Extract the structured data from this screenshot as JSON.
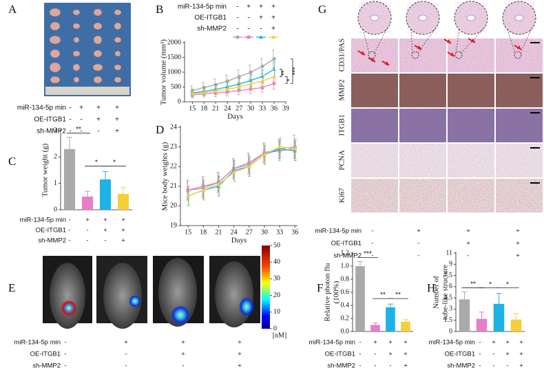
{
  "panels": [
    "A",
    "B",
    "C",
    "D",
    "E",
    "F",
    "G",
    "H"
  ],
  "conditions": {
    "rows": [
      {
        "label": "miR-134-5p min",
        "signs": [
          "-",
          "+",
          "+",
          "+"
        ]
      },
      {
        "label": "OE-ITGB1",
        "signs": [
          "-",
          "-",
          "+",
          "+"
        ]
      },
      {
        "label": "sh-MMP2",
        "signs": [
          "-",
          "-",
          "-",
          "+"
        ]
      }
    ]
  },
  "ihc": {
    "rows": [
      "CD31/PAS",
      "MMP2",
      "ITGB1",
      "PCNA",
      "Ki67"
    ]
  },
  "chart_data": [
    {
      "type": "line",
      "ylabel": "Tumor volume (mm³)",
      "xlabel": "Days",
      "x": [
        15,
        18,
        21,
        24,
        27,
        30,
        33,
        36
      ],
      "xlim": [
        13,
        39
      ],
      "xticks": [
        15,
        18,
        21,
        24,
        27,
        30,
        33,
        36,
        39
      ],
      "ylim": [
        0,
        2000
      ],
      "yticks": [
        0,
        500,
        1000,
        1500,
        2000
      ],
      "series": [
        {
          "color": "#a9a9a9",
          "marker": "circle",
          "values": [
            380,
            480,
            580,
            700,
            850,
            1000,
            1200,
            1450
          ],
          "errors": [
            150,
            170,
            190,
            200,
            220,
            240,
            260,
            300
          ]
        },
        {
          "color": "#e67fc8",
          "marker": "square",
          "values": [
            230,
            270,
            300,
            330,
            380,
            430,
            480,
            620
          ],
          "errors": [
            100,
            110,
            120,
            130,
            140,
            150,
            160,
            200
          ]
        },
        {
          "color": "#1fb2e6",
          "marker": "triangle",
          "values": [
            300,
            350,
            420,
            500,
            600,
            720,
            860,
            1100
          ],
          "errors": [
            120,
            130,
            150,
            160,
            180,
            200,
            220,
            250
          ]
        },
        {
          "color": "#f5cf3a",
          "marker": "triangle",
          "values": [
            270,
            310,
            360,
            420,
            500,
            600,
            700,
            850
          ],
          "errors": [
            110,
            120,
            130,
            140,
            160,
            180,
            200,
            230
          ]
        }
      ],
      "annotations": [
        "**",
        "*",
        "***"
      ]
    },
    {
      "type": "bar",
      "ylabel": "Tumor  weight (g)",
      "values": [
        2.3,
        0.5,
        1.15,
        0.6
      ],
      "errors": [
        0.45,
        0.2,
        0.3,
        0.25
      ],
      "colors": [
        "#a9a9a9",
        "#e67fc8",
        "#1fb2e6",
        "#f5cf3a"
      ],
      "ylim": [
        0,
        3
      ],
      "yticks": [
        0,
        1,
        2,
        3
      ],
      "annotations": [
        "**",
        "*",
        "*"
      ]
    },
    {
      "type": "line",
      "ylabel": "Mice body weights (g)",
      "xlabel": "Days",
      "x": [
        15,
        18,
        21,
        24,
        27,
        30,
        33,
        36
      ],
      "xlim": [
        13.5,
        36.5
      ],
      "xticks": [
        15,
        18,
        21,
        24,
        27,
        30,
        33,
        36
      ],
      "ylim": [
        19,
        24
      ],
      "yticks": [
        19,
        20,
        21,
        22,
        23,
        24
      ],
      "series": [
        {
          "color": "#a9a9a9",
          "marker": "circle",
          "values": [
            20.8,
            20.9,
            21.2,
            21.9,
            22.2,
            22.7,
            22.9,
            23.0
          ],
          "errors": [
            0.5,
            0.5,
            0.5,
            0.5,
            0.5,
            0.5,
            0.5,
            0.6
          ]
        },
        {
          "color": "#e67fc8",
          "marker": "square",
          "values": [
            20.8,
            21.0,
            21.2,
            21.9,
            22.1,
            22.7,
            22.8,
            22.9
          ],
          "errors": [
            0.5,
            0.5,
            0.5,
            0.5,
            0.5,
            0.5,
            0.5,
            0.5
          ]
        },
        {
          "color": "#1fb2e6",
          "marker": "triangle",
          "values": [
            20.5,
            20.8,
            21.0,
            21.8,
            22.0,
            22.6,
            22.9,
            22.8
          ],
          "errors": [
            0.5,
            0.5,
            0.5,
            0.5,
            0.5,
            0.5,
            0.5,
            0.5
          ]
        },
        {
          "color": "#f5cf3a",
          "marker": "triangle",
          "values": [
            20.5,
            20.8,
            21.1,
            21.7,
            22.0,
            22.6,
            23.0,
            22.9
          ],
          "errors": [
            0.5,
            0.5,
            0.5,
            0.5,
            0.5,
            0.5,
            0.5,
            0.5
          ]
        }
      ]
    },
    {
      "type": "bar",
      "ylabel": [
        "Relative photon flu",
        "(100%)"
      ],
      "values": [
        1.0,
        0.1,
        0.37,
        0.15
      ],
      "errors": [
        0.07,
        0.03,
        0.05,
        0.03
      ],
      "colors": [
        "#a9a9a9",
        "#e67fc8",
        "#1fb2e6",
        "#f5cf3a"
      ],
      "ylim": [
        0,
        1.2
      ],
      "yticks": [
        {
          "value": 0,
          "label": "0.0"
        },
        0.2,
        0.4,
        0.6,
        0.8,
        {
          "value": 1,
          "label": "1.0"
        },
        1.2
      ],
      "annotations": [
        "***",
        "**",
        "**"
      ]
    },
    {
      "type": "bar",
      "ylabel": [
        "Number of",
        "tube-like structure"
      ],
      "values": [
        4.3,
        1.7,
        3.7,
        1.6
      ],
      "errors": [
        1.0,
        0.9,
        1.4,
        0.8
      ],
      "colors": [
        "#a9a9a9",
        "#e67fc8",
        "#1fb2e6",
        "#f5cf3a"
      ],
      "ylim": [
        0,
        10.5
      ],
      "yticks": [
        0,
        1.5,
        3,
        4.5,
        6,
        7.5,
        9,
        {
          "value": 10.5,
          "label": "11"
        }
      ],
      "annotations": [
        "**",
        "*",
        "*"
      ]
    },
    {
      "type": "colorbar",
      "unit": "[nM]",
      "ylim": [
        0,
        50
      ],
      "yticks": [
        0,
        10,
        20,
        30,
        40,
        50
      ]
    }
  ]
}
